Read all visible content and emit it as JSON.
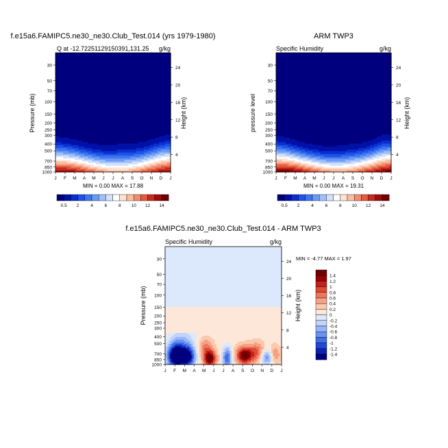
{
  "chart_data": [
    {
      "type": "heatmap",
      "title": "f.e15a6.FAMIPC5.ne30_ne30.Club_Test.014 (yrs 1979-1980)",
      "left_string": "Q at -12.72251129150391,131.25",
      "right_string": "g/kg",
      "ylabel": "Pressure (mb)",
      "ylabel_right": "Height (km)",
      "x_ticks": [
        "J",
        "F",
        "M",
        "A",
        "M",
        "J",
        "J",
        "A",
        "S",
        "O",
        "N",
        "D",
        "J"
      ],
      "y_ticks": [
        "30",
        "50",
        "70",
        "100",
        "150",
        "200",
        "250",
        "300",
        "400",
        "500",
        "700",
        "850",
        "1000"
      ],
      "y_ticks_right": [
        "24",
        "20",
        "16",
        "12",
        "8",
        "4"
      ],
      "min_max_text": "MIN =   0.00 MAX =  17.88",
      "colorbar_labels": [
        "0.5",
        "2",
        "4",
        "6",
        "8",
        "10",
        "12",
        "14"
      ],
      "min": 0.0,
      "max": 17.88,
      "moisture_top_by_month": [
        310,
        325,
        345,
        375,
        400,
        415,
        408,
        400,
        392,
        380,
        345,
        305,
        295
      ]
    },
    {
      "type": "heatmap",
      "title": "ARM TWP3",
      "left_string": "Specific Humidity",
      "right_string": "g/kg",
      "ylabel": "pressure level",
      "ylabel_right": "Height (km)",
      "x_ticks": [
        "J",
        "F",
        "M",
        "A",
        "M",
        "J",
        "J",
        "A",
        "S",
        "O",
        "N",
        "D",
        "J"
      ],
      "y_ticks": [
        "30",
        "50",
        "70",
        "100",
        "150",
        "200",
        "250",
        "300",
        "400",
        "500",
        "700",
        "850",
        "1000"
      ],
      "y_ticks_right": [
        "24",
        "20",
        "16",
        "12",
        "8",
        "4"
      ],
      "min_max_text": "MIN =   0.00 MAX =  19.31",
      "colorbar_labels": [
        "0.5",
        "2",
        "4",
        "6",
        "8",
        "10",
        "12",
        "14"
      ],
      "min": 0.0,
      "max": 19.31,
      "moisture_top_by_month": [
        300,
        320,
        350,
        385,
        410,
        430,
        430,
        415,
        400,
        385,
        350,
        300,
        290
      ]
    },
    {
      "type": "heatmap",
      "title": "f.e15a6.FAMIPC5.ne30_ne30.Club_Test.014 - ARM TWP3",
      "left_string": "Specific Humidity",
      "right_string": "g/kg",
      "ylabel": "Pressure (mb)",
      "ylabel_right": "Height (km)",
      "x_ticks": [
        "J",
        "F",
        "M",
        "A",
        "M",
        "J",
        "J",
        "A",
        "S",
        "O",
        "N",
        "D",
        "J"
      ],
      "y_ticks": [
        "30",
        "50",
        "70",
        "100",
        "150",
        "200",
        "250",
        "300",
        "400",
        "500",
        "700",
        "850",
        "1000"
      ],
      "y_ticks_right": [
        "24",
        "20",
        "16",
        "12",
        "8",
        "4"
      ],
      "min_max_text": "MIN =  -4.77 MAX =   1.97",
      "colorbar_labels": [
        "1.4",
        "1.2",
        "1",
        "0.8",
        "0.6",
        "0.4",
        "0.2",
        "0",
        "-0.2",
        "-0.4",
        "-0.6",
        "-0.8",
        "-1",
        "-1.2",
        "-1.4"
      ],
      "min": -4.77,
      "max": 1.97
    }
  ],
  "colors": {
    "seq": [
      "#00007f",
      "#0011a8",
      "#0a2fd0",
      "#1f52e6",
      "#3e76ef",
      "#6a9af5",
      "#a1c0f9",
      "#d3e2fc",
      "#ffffff",
      "#fde3d4",
      "#f9bca1",
      "#f28d6c",
      "#e45a3f",
      "#c92a1d",
      "#a10a0a",
      "#6e0000"
    ],
    "div": [
      "#00007f",
      "#0a22b0",
      "#1f48d8",
      "#3f6ee8",
      "#6a92f0",
      "#97b4f5",
      "#c0d3fa",
      "#dce9fc",
      "#fde7d8",
      "#fbc9ae",
      "#f6a185",
      "#ee765c",
      "#df4a33",
      "#c2201a",
      "#990000",
      "#6e0000"
    ]
  }
}
